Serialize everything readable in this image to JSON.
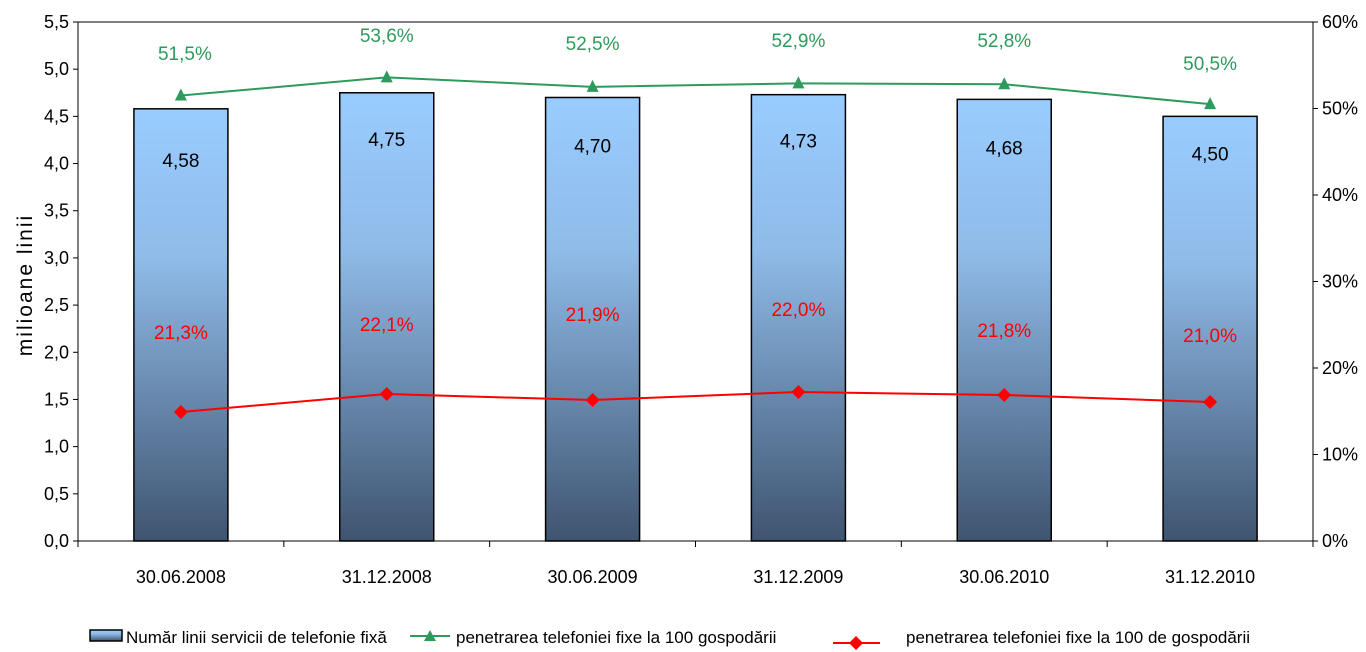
{
  "chart_data": {
    "type": "bar",
    "categories": [
      "30.06.2008",
      "31.12.2008",
      "30.06.2009",
      "31.12.2009",
      "30.06.2010",
      "31.12.2010"
    ],
    "ylabel": "milioane linii",
    "ylim": [
      0,
      5.5
    ],
    "y_ticks": [
      "0,0",
      "0,5",
      "1,0",
      "1,5",
      "2,0",
      "2,5",
      "3,0",
      "3,5",
      "4,0",
      "4,5",
      "5,0",
      "5,5"
    ],
    "y2lim": [
      0,
      0.6
    ],
    "y2_ticks": [
      "0%",
      "10%",
      "20%",
      "30%",
      "40%",
      "50%",
      "60%"
    ],
    "grid": false,
    "legend_position": "bottom",
    "series": [
      {
        "name": "Număr linii servicii de telefonie fixă",
        "type": "bar",
        "axis": "left",
        "values": [
          4.58,
          4.75,
          4.7,
          4.73,
          4.68,
          4.5
        ],
        "labels": [
          "4,58",
          "4,75",
          "4,70",
          "4,73",
          "4,68",
          "4,50"
        ]
      },
      {
        "name": "penetrarea telefoniei fixe la 100 gospodării",
        "type": "line",
        "axis": "right",
        "marker": "triangle",
        "values": [
          0.515,
          0.536,
          0.525,
          0.529,
          0.528,
          0.505
        ],
        "labels": [
          "51,5%",
          "53,6%",
          "52,5%",
          "52,9%",
          "52,8%",
          "50,5%"
        ]
      },
      {
        "name": "penetrarea telefoniei fixe la 100 de gospodării",
        "type": "line",
        "axis": "right",
        "marker": "diamond",
        "values": [
          0.213,
          0.221,
          0.219,
          0.22,
          0.218,
          0.21
        ],
        "labels": [
          "21,3%",
          "22,1%",
          "21,9%",
          "22,0%",
          "21,8%",
          "21,0%"
        ]
      }
    ],
    "colors": {
      "bar_top": "#99ccff",
      "bar_bottom": "#3f5470",
      "green_line": "#2e9a5b",
      "red_line": "#ff0000",
      "axis": "#000000"
    }
  }
}
